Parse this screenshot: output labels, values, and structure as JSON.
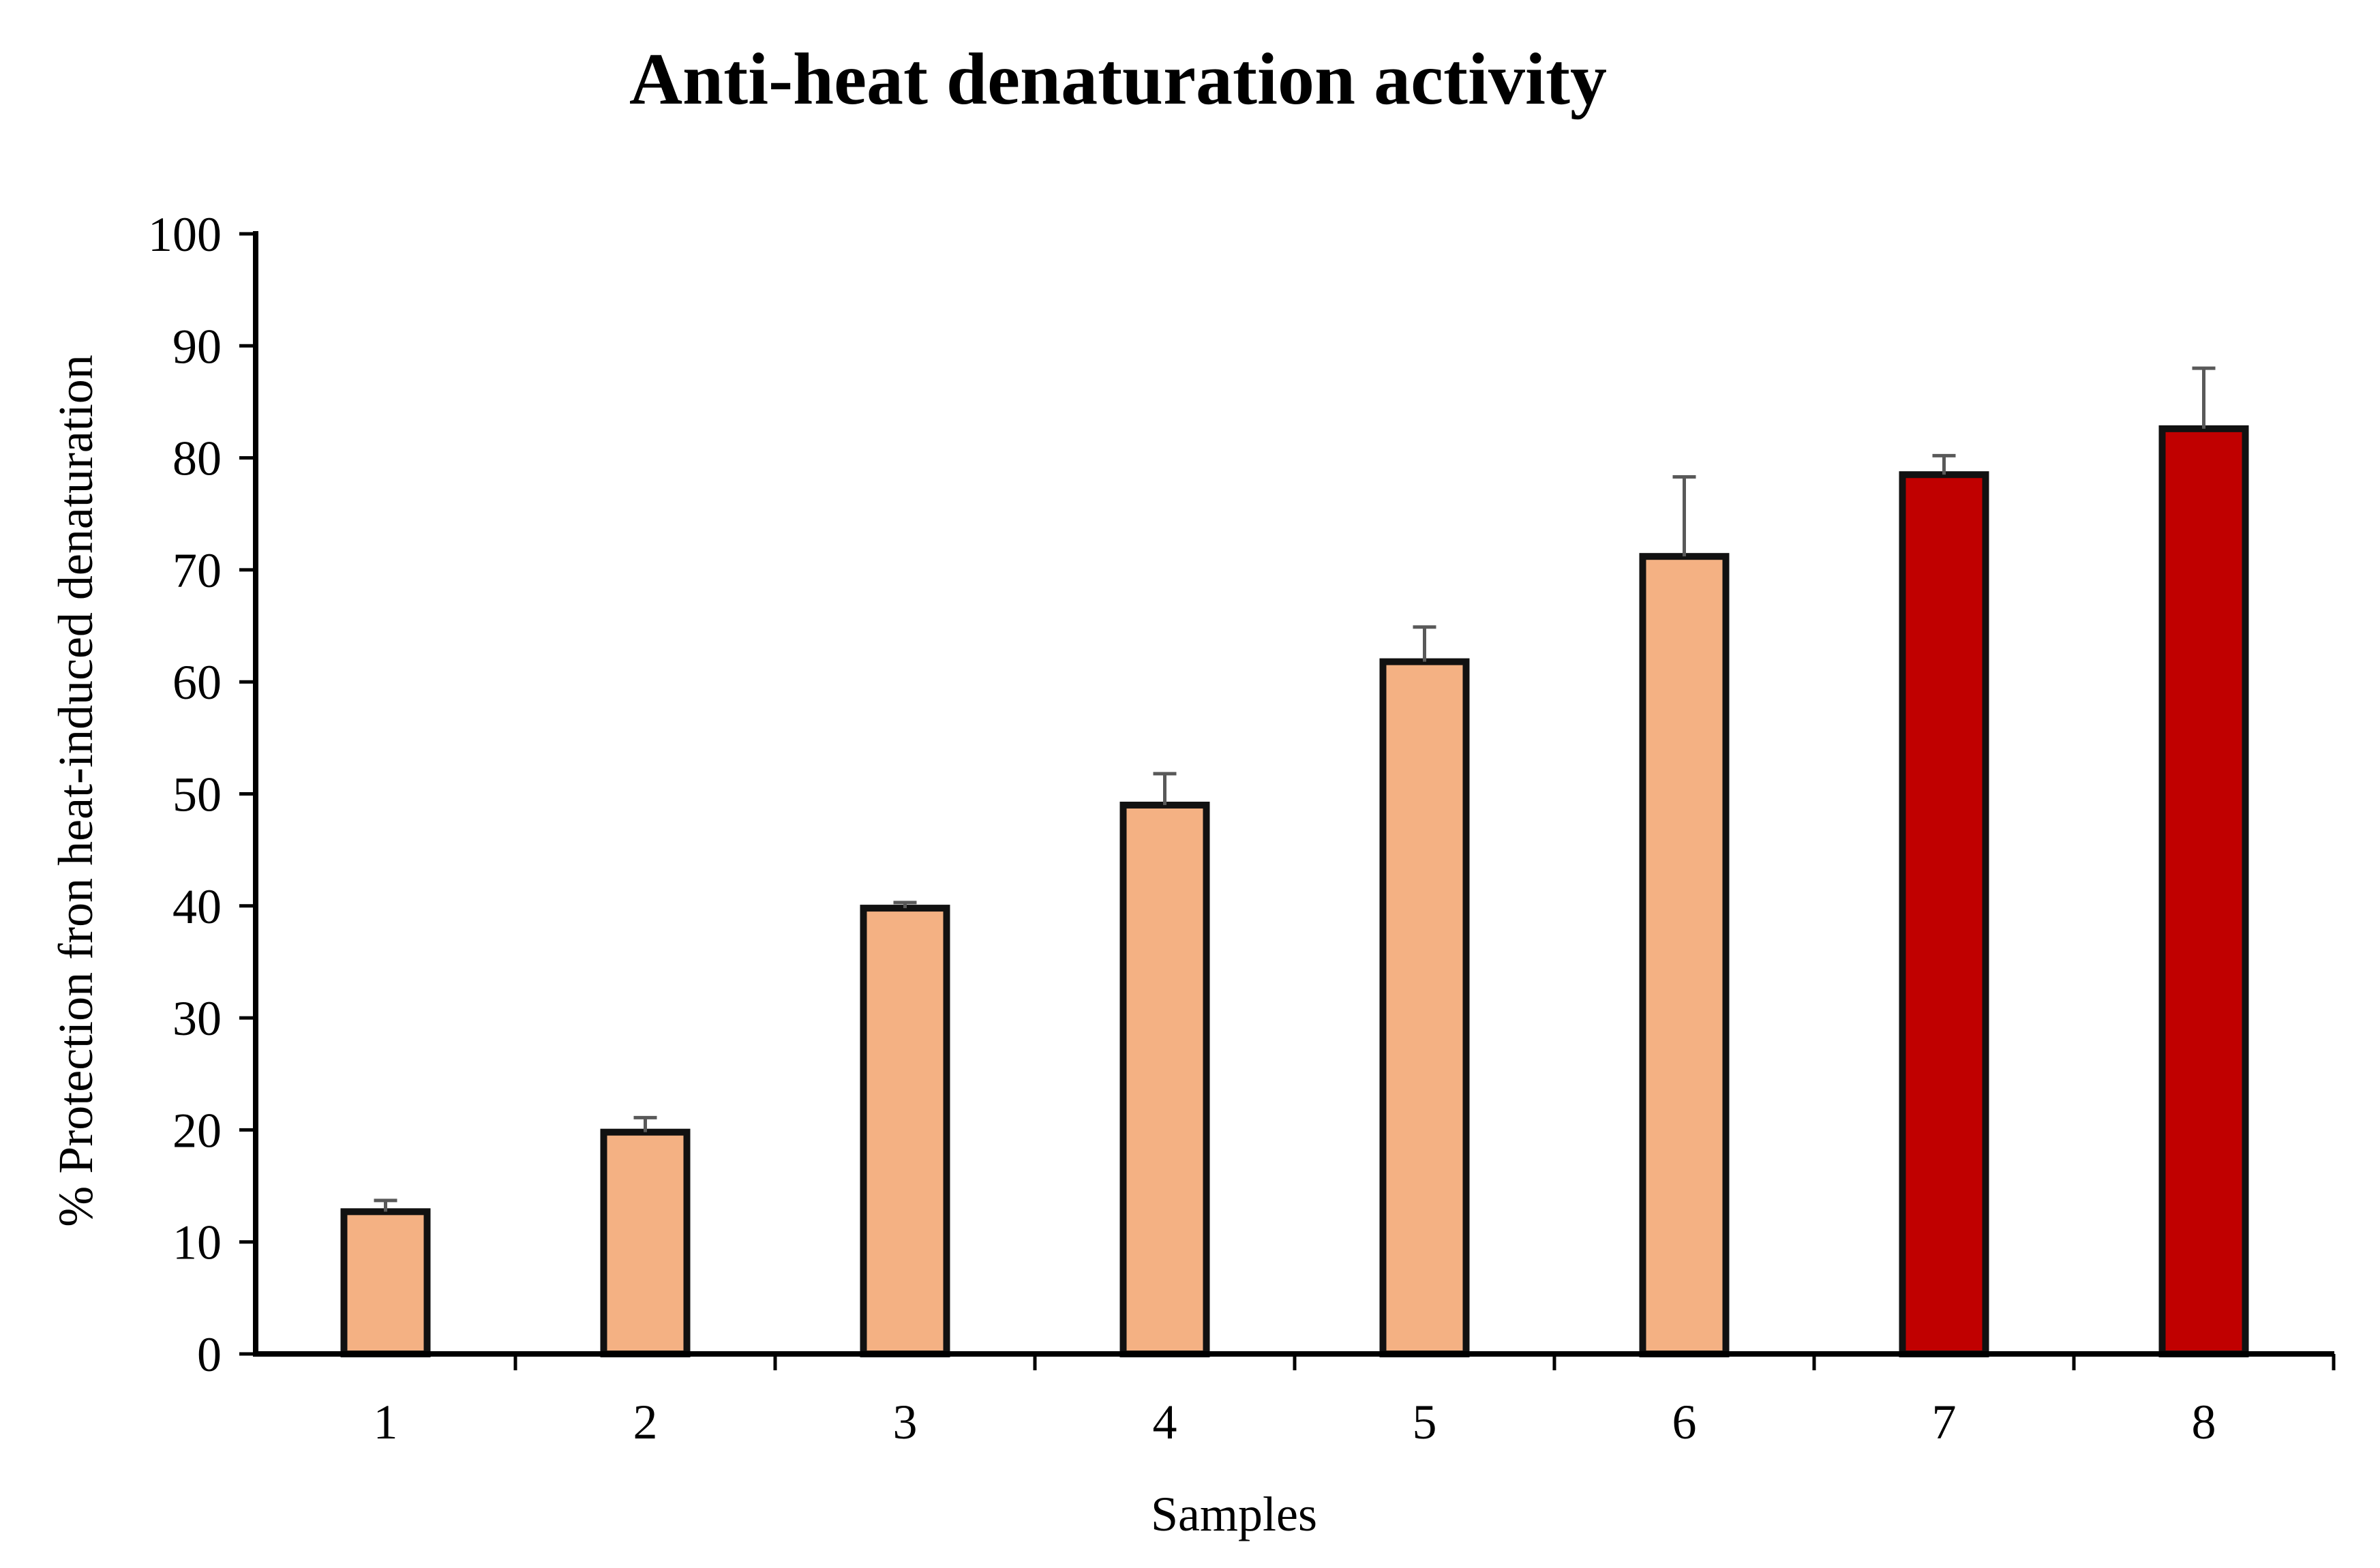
{
  "chart_data": {
    "type": "bar",
    "title": "Anti-heat denaturation activity",
    "xlabel": "Samples",
    "ylabel": "% Protection fron heat-induced denaturation",
    "ylim": [
      0,
      100
    ],
    "yticks": [
      0,
      10,
      20,
      30,
      40,
      50,
      60,
      70,
      80,
      90,
      100
    ],
    "categories": [
      "1",
      "2",
      "3",
      "4",
      "5",
      "6",
      "7",
      "8"
    ],
    "values": [
      12.7,
      19.8,
      39.8,
      49.0,
      61.8,
      71.2,
      78.5,
      82.6
    ],
    "errors": [
      1.0,
      1.3,
      0.5,
      2.8,
      3.1,
      7.1,
      1.7,
      5.4
    ],
    "bar_colors": [
      "#f4b183",
      "#f4b183",
      "#f4b183",
      "#f4b183",
      "#f4b183",
      "#f4b183",
      "#c00000",
      "#c00000"
    ],
    "edge_color": "#111111",
    "error_color": "#595959",
    "grid": false,
    "legend": "none"
  }
}
